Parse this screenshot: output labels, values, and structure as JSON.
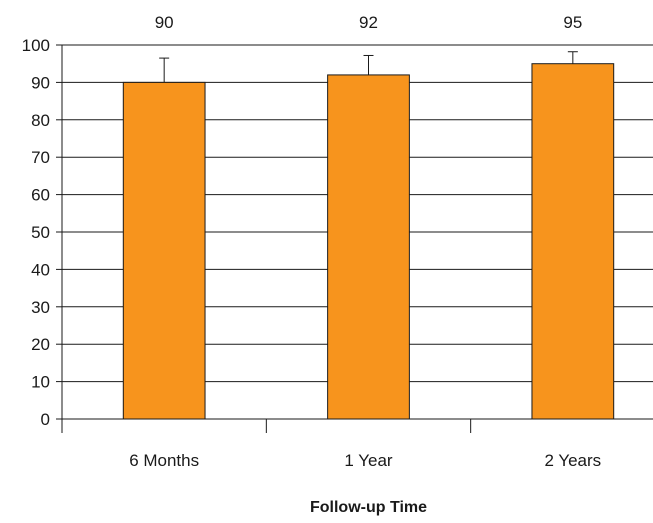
{
  "chart_data": {
    "type": "bar",
    "categories": [
      "6 Months",
      "1 Year",
      "2 Years"
    ],
    "values": [
      90,
      92,
      95
    ],
    "error_bars_upper": [
      96.5,
      97.2,
      98.2
    ],
    "data_labels": [
      "90",
      "92",
      "95"
    ],
    "title": "",
    "xlabel": "Follow-up Time",
    "ylabel": "",
    "ylim": [
      0,
      100
    ],
    "yticks": [
      0,
      10,
      20,
      30,
      40,
      50,
      60,
      70,
      80,
      90,
      100
    ],
    "grid": "horizontal",
    "bar_color": "#F7941D",
    "bar_edge_color": "#1a1a1a",
    "legend": "none"
  }
}
